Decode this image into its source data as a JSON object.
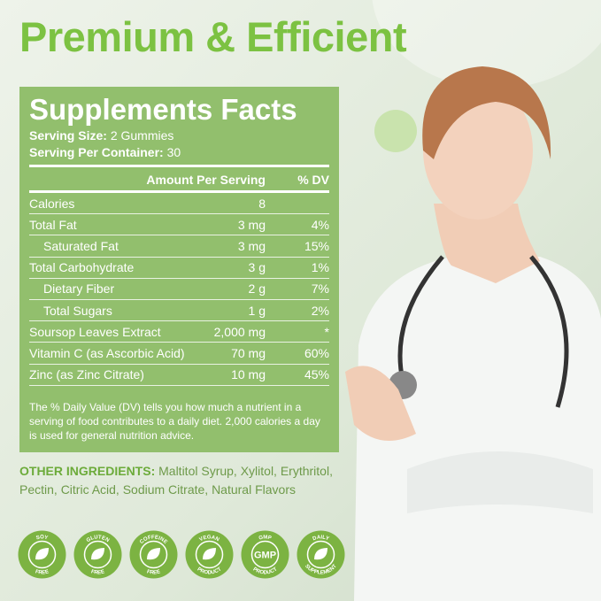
{
  "headline": "Premium & Efficient",
  "facts": {
    "title": "Supplements Facts",
    "serving_size_label": "Serving Size:",
    "serving_size": "2 Gummies",
    "per_container_label": "Serving Per Container:",
    "per_container": "30",
    "col_amount": "Amount Per Serving",
    "col_dv": "% DV",
    "rows": [
      {
        "name": "Calories",
        "amount": "8",
        "dv": ""
      },
      {
        "name": "Total Fat",
        "amount": "3 mg",
        "dv": "4%"
      },
      {
        "name": "Saturated Fat",
        "amount": "3 mg",
        "dv": "15%"
      },
      {
        "name": "Total Carbohydrate",
        "amount": "3 g",
        "dv": "1%"
      },
      {
        "name": "Dietary Fiber",
        "amount": "2 g",
        "dv": "7%"
      },
      {
        "name": "Total Sugars",
        "amount": "1 g",
        "dv": "2%"
      },
      {
        "name": "Soursop Leaves Extract",
        "amount": "2,000 mg",
        "dv": "*"
      },
      {
        "name": "Vitamin C (as Ascorbic Acid)",
        "amount": "70 mg",
        "dv": "60%"
      },
      {
        "name": "Zinc (as Zinc Citrate)",
        "amount": "10 mg",
        "dv": "45%"
      }
    ],
    "note": "The % Daily Value (DV) tells you how much a nutrient in a serving of food contributes to a daily diet. 2,000 calories a day is used for general nutrition advice."
  },
  "ingredients": {
    "label": "OTHER INGREDIENTS:",
    "text": " Maltitol Syrup, Xylitol, Erythritol, Pectin, Citric Acid, Sodium Citrate, Natural Flavors"
  },
  "badges": [
    {
      "top": "SOY",
      "bottom": "FREE",
      "icon": "soybean-icon"
    },
    {
      "top": "GLUTEN",
      "bottom": "FREE",
      "icon": "wheat-icon"
    },
    {
      "top": "COFFEINE",
      "bottom": "FREE",
      "icon": "coffee-bean-icon"
    },
    {
      "top": "VEGAN",
      "bottom": "PRODUCT",
      "icon": "leaf-icon"
    },
    {
      "top": "GMP",
      "bottom": "PRODUCT",
      "icon": "gmp-icon",
      "center": "GMP"
    },
    {
      "top": "DAILY",
      "bottom": "SUPPLEMENT",
      "icon": "bottle-icon"
    }
  ],
  "colors": {
    "accent": "#7cc242",
    "panel": "#92bf6d"
  }
}
